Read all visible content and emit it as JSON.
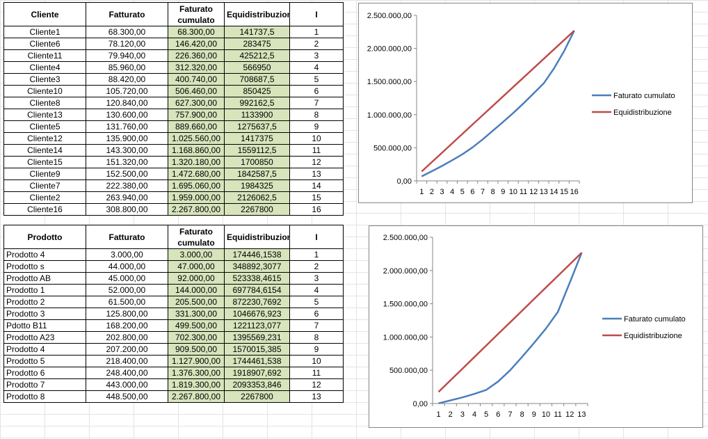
{
  "table1": {
    "headers": [
      "Cliente",
      "Fatturato",
      "Faturato cumulato",
      "Equidistribuzione",
      "I"
    ],
    "rows": [
      [
        "Cliente1",
        "68.300,00",
        "68.300,00",
        "141737,5",
        "1"
      ],
      [
        "Cliente6",
        "78.120,00",
        "146.420,00",
        "283475",
        "2"
      ],
      [
        "Cliente11",
        "79.940,00",
        "226.360,00",
        "425212,5",
        "3"
      ],
      [
        "Cliente4",
        "85.960,00",
        "312.320,00",
        "566950",
        "4"
      ],
      [
        "Cliente3",
        "88.420,00",
        "400.740,00",
        "708687,5",
        "5"
      ],
      [
        "Cliente10",
        "105.720,00",
        "506.460,00",
        "850425",
        "6"
      ],
      [
        "Cliente8",
        "120.840,00",
        "627.300,00",
        "992162,5",
        "7"
      ],
      [
        "Cliente13",
        "130.600,00",
        "757.900,00",
        "1133900",
        "8"
      ],
      [
        "Cliente5",
        "131.760,00",
        "889.660,00",
        "1275637,5",
        "9"
      ],
      [
        "Cliente12",
        "135.900,00",
        "1.025.560,00",
        "1417375",
        "10"
      ],
      [
        "Cliente14",
        "143.300,00",
        "1.168.860,00",
        "1559112,5",
        "11"
      ],
      [
        "Cliente15",
        "151.320,00",
        "1.320.180,00",
        "1700850",
        "12"
      ],
      [
        "Cliente9",
        "152.500,00",
        "1.472.680,00",
        "1842587,5",
        "13"
      ],
      [
        "Cliente7",
        "222.380,00",
        "1.695.060,00",
        "1984325",
        "14"
      ],
      [
        "Cliente2",
        "263.940,00",
        "1.959.000,00",
        "2126062,5",
        "15"
      ],
      [
        "Cliente16",
        "308.800,00",
        "2.267.800,00",
        "2267800",
        "16"
      ]
    ]
  },
  "table2": {
    "headers": [
      "Prodotto",
      "Fatturato",
      "Faturato cumulato",
      "Equidistribuzione",
      "I"
    ],
    "rows": [
      [
        "Prodotto 4",
        "3.000,00",
        "3.000,00",
        "174446,1538",
        "1"
      ],
      [
        "Prodotto s",
        "44.000,00",
        "47.000,00",
        "348892,3077",
        "2"
      ],
      [
        "Prodotto AB",
        "45.000,00",
        "92.000,00",
        "523338,4615",
        "3"
      ],
      [
        "Prodotto 1",
        "52.000,00",
        "144.000,00",
        "697784,6154",
        "4"
      ],
      [
        "Prodotto 2",
        "61.500,00",
        "205.500,00",
        "872230,7692",
        "5"
      ],
      [
        "Prodotto 3",
        "125.800,00",
        "331.300,00",
        "1046676,923",
        "6"
      ],
      [
        "Pdotto B11",
        "168.200,00",
        "499.500,00",
        "1221123,077",
        "7"
      ],
      [
        "Prodotto A23",
        "202.800,00",
        "702.300,00",
        "1395569,231",
        "8"
      ],
      [
        "Prodotto 4",
        "207.200,00",
        "909.500,00",
        "1570015,385",
        "9"
      ],
      [
        "Prodotto 5",
        "218.400,00",
        "1.127.900,00",
        "1744461,538",
        "10"
      ],
      [
        "Prodotto 6",
        "248.400,00",
        "1.376.300,00",
        "1918907,692",
        "11"
      ],
      [
        "Prodotto 7",
        "443.000,00",
        "1.819.300,00",
        "2093353,846",
        "12"
      ],
      [
        "Prodotto 8",
        "448.500,00",
        "2.267.800,00",
        "2267800",
        "13"
      ]
    ]
  },
  "chart_data": [
    {
      "type": "line",
      "ylim": [
        0,
        2500000
      ],
      "yticks": [
        "0,00",
        "500.000,00",
        "1.000.000,00",
        "1.500.000,00",
        "2.000.000,00",
        "2.500.000,00"
      ],
      "categories": [
        "1",
        "2",
        "3",
        "4",
        "5",
        "6",
        "7",
        "8",
        "9",
        "10",
        "11",
        "12",
        "13",
        "14",
        "15",
        "16"
      ],
      "legend": "right",
      "series": [
        {
          "name": "Faturato cumulato",
          "color": "#4a7ebb",
          "values": [
            68300,
            146420,
            226360,
            312320,
            400740,
            506460,
            627300,
            757900,
            889660,
            1025560,
            1168860,
            1320180,
            1472680,
            1695060,
            1959000,
            2267800
          ]
        },
        {
          "name": "Equidistribuzione",
          "color": "#be4b48",
          "values": [
            141737.5,
            283475,
            425212.5,
            566950,
            708687.5,
            850425,
            992162.5,
            1133900,
            1275637.5,
            1417375,
            1559112.5,
            1700850,
            1842587.5,
            1984325,
            2126062.5,
            2267800
          ]
        }
      ]
    },
    {
      "type": "line",
      "ylim": [
        0,
        2500000
      ],
      "yticks": [
        "0,00",
        "500.000,00",
        "1.000.000,00",
        "1.500.000,00",
        "2.000.000,00",
        "2.500.000,00"
      ],
      "categories": [
        "1",
        "2",
        "3",
        "4",
        "5",
        "6",
        "7",
        "8",
        "9",
        "10",
        "11",
        "12",
        "13"
      ],
      "legend": "right",
      "series": [
        {
          "name": "Faturato cumulato",
          "color": "#4a7ebb",
          "values": [
            3000,
            47000,
            92000,
            144000,
            205500,
            331300,
            499500,
            702300,
            909500,
            1127900,
            1376300,
            1819300,
            2267800
          ]
        },
        {
          "name": "Equidistribuzione",
          "color": "#be4b48",
          "values": [
            174446.1538,
            348892.3077,
            523338.4615,
            697784.6154,
            872230.7692,
            1046676.923,
            1221123.077,
            1395569.231,
            1570015.385,
            1744461.538,
            1918907.692,
            2093353.846,
            2267800
          ]
        }
      ]
    }
  ]
}
